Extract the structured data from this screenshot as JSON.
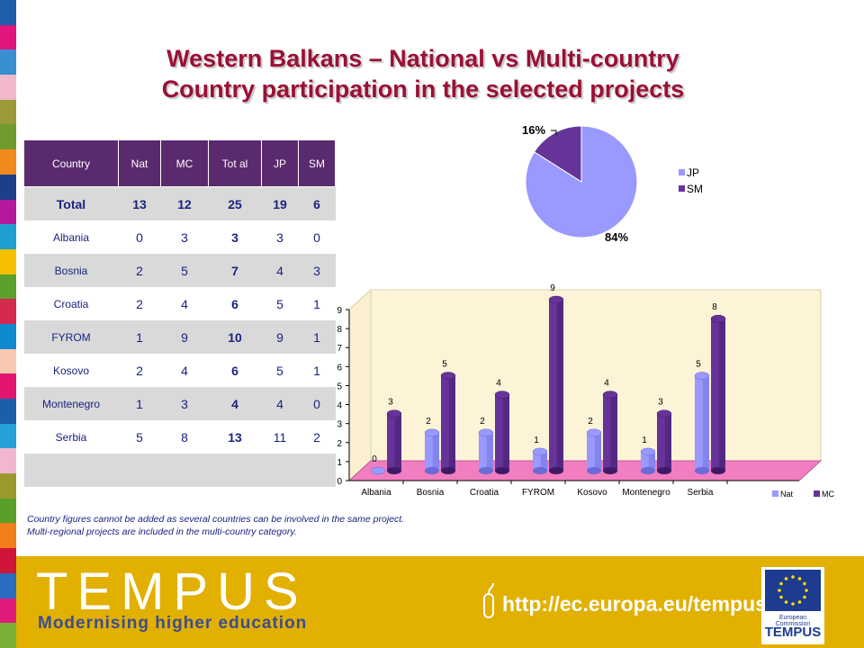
{
  "title_line1": "Western Balkans – National vs Multi-country",
  "title_line2": "Country participation in the selected projects",
  "table": {
    "headers": [
      "Country",
      "Nat",
      "MC",
      "Tot al",
      "JP",
      "SM"
    ],
    "total_row": [
      "Total",
      "13",
      "12",
      "25",
      "19",
      "6"
    ],
    "rows": [
      [
        "Albania",
        "0",
        "3",
        "3",
        "3",
        "0"
      ],
      [
        "Bosnia",
        "2",
        "5",
        "7",
        "4",
        "3"
      ],
      [
        "Croatia",
        "2",
        "4",
        "6",
        "5",
        "1"
      ],
      [
        "FYROM",
        "1",
        "9",
        "10",
        "9",
        "1"
      ],
      [
        "Kosovo",
        "2",
        "4",
        "6",
        "5",
        "1"
      ],
      [
        "Montenegro",
        "1",
        "3",
        "4",
        "4",
        "0"
      ],
      [
        "Serbia",
        "5",
        "8",
        "13",
        "11",
        "2"
      ]
    ]
  },
  "chart_data": [
    {
      "type": "pie",
      "labels": [
        "JP",
        "SM"
      ],
      "values": [
        84,
        16
      ],
      "data_labels": [
        "84%",
        "16%"
      ],
      "colors": [
        "#9999ff",
        "#663399"
      ],
      "legend": "right"
    },
    {
      "type": "bar",
      "categories": [
        "Albania",
        "Bosnia",
        "Croatia",
        "FYROM",
        "Kosovo",
        "Montenegro",
        "Serbia"
      ],
      "series": [
        {
          "name": "Nat",
          "values": [
            0,
            2,
            2,
            1,
            2,
            1,
            5
          ],
          "color": "#9999ff"
        },
        {
          "name": "MC",
          "values": [
            3,
            5,
            4,
            9,
            4,
            3,
            8
          ],
          "color": "#663399"
        }
      ],
      "y_ticks": [
        "0",
        "1",
        "2",
        "3",
        "4",
        "5",
        "6",
        "7",
        "8",
        "9"
      ],
      "ylim": [
        0,
        9
      ],
      "legend": "bottom-right"
    }
  ],
  "notes": [
    "Country figures cannot be added as several countries can be involved in the same project.",
    "Multi-regional projects are included in the multi-country category."
  ],
  "footer": {
    "brand": "TEMPUS",
    "tagline": "Modernising higher education",
    "url": "http://ec.europa.eu/tempus",
    "logo_line1": "European Commission",
    "logo_line2": "TEMPUS"
  },
  "colors": {
    "title": "#9b1035",
    "table_header": "#5a2a6e",
    "footer_bg": "#e1b000",
    "stripe": [
      "#1d5fa8",
      "#e0157d",
      "#3a8fd0",
      "#f2b8cc",
      "#9a9a3a",
      "#6f9a2e",
      "#f08a1c",
      "#1c3f8a",
      "#b5179e",
      "#1f9fd0",
      "#f5c000",
      "#5aa02c",
      "#d42a4e",
      "#0f8ad0",
      "#f7c9b0",
      "#e2166e",
      "#1a60a8",
      "#26a0d8",
      "#f3b6d0",
      "#9a9a2c",
      "#58a02a",
      "#f07f1a",
      "#d0143a",
      "#2a6cc0",
      "#e01a7a",
      "#7ab03a"
    ]
  }
}
